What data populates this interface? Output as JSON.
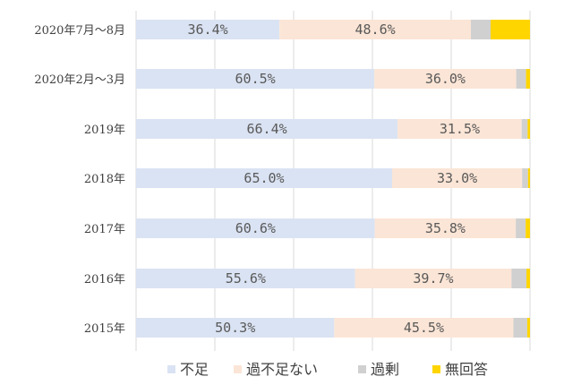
{
  "chart_data": {
    "type": "bar",
    "orientation": "horizontal",
    "stacked": "percent",
    "title": "",
    "xlabel": "",
    "ylabel": "",
    "xlim": [
      0,
      100
    ],
    "grid": "vertical",
    "legend_position": "bottom",
    "categories": [
      "2020年7月～8月",
      "2020年2月～3月",
      "2019年",
      "2018年",
      "2017年",
      "2016年",
      "2015年"
    ],
    "series": [
      {
        "name": "不足",
        "color": "#dae3f3",
        "values": [
          36.4,
          60.5,
          66.4,
          65.0,
          60.6,
          55.6,
          50.3
        ],
        "labels": [
          "36.4%",
          "60.5%",
          "66.4%",
          "65.0%",
          "60.6%",
          "55.6%",
          "50.3%"
        ]
      },
      {
        "name": "過不足ない",
        "color": "#fbe5d6",
        "values": [
          48.6,
          36.0,
          31.5,
          33.0,
          35.8,
          39.7,
          45.5
        ],
        "labels": [
          "48.6%",
          "36.0%",
          "31.5%",
          "33.0%",
          "35.8%",
          "39.7%",
          "45.5%"
        ]
      },
      {
        "name": "過剰",
        "color": "#d0d0d0",
        "values": [
          5.0,
          2.5,
          1.5,
          1.5,
          2.5,
          3.8,
          3.5
        ]
      },
      {
        "name": "無回答",
        "color": "#ffd500",
        "values": [
          10.0,
          1.0,
          0.6,
          0.5,
          1.1,
          0.9,
          0.7
        ]
      }
    ]
  }
}
